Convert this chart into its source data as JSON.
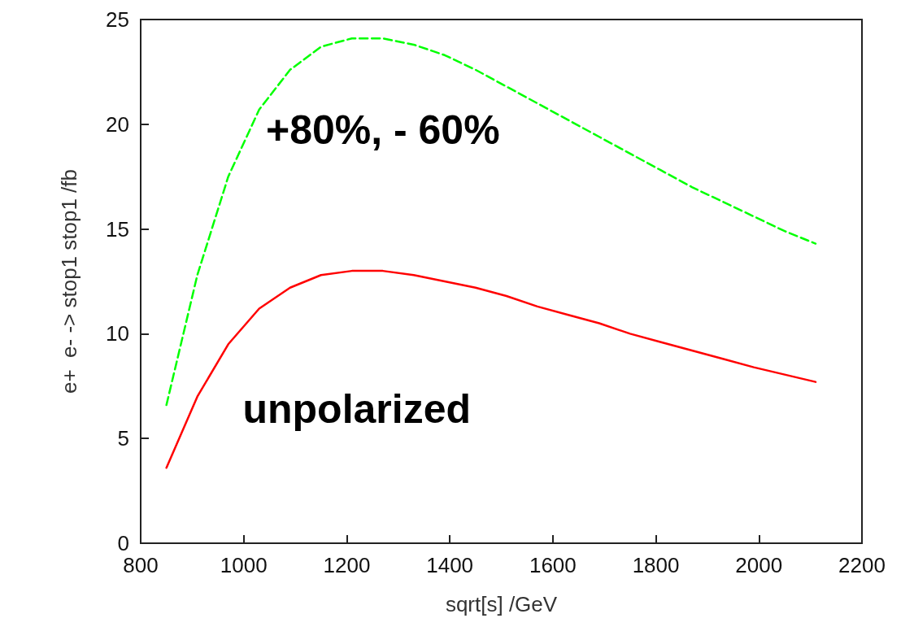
{
  "chart_data": {
    "type": "line",
    "xlabel": "sqrt[s] /GeV",
    "ylabel": "e+  e- -> stop1 stop1 /fb",
    "x": [
      850,
      910,
      970,
      1030,
      1090,
      1150,
      1210,
      1270,
      1330,
      1390,
      1450,
      1510,
      1570,
      1630,
      1690,
      1750,
      1810,
      1870,
      1930,
      1990,
      2050,
      2110
    ],
    "series": [
      {
        "name": "unpolarized",
        "color": "#ff0000",
        "line_style": "solid",
        "values": [
          3.6,
          7.0,
          9.5,
          11.2,
          12.2,
          12.8,
          13.0,
          13.0,
          12.8,
          12.5,
          12.2,
          11.8,
          11.3,
          10.9,
          10.5,
          10.0,
          9.6,
          9.2,
          8.8,
          8.4,
          8.05,
          7.7
        ]
      },
      {
        "name": "+80%, - 60%",
        "color": "#00ff00",
        "line_style": "dashed",
        "values": [
          6.6,
          12.8,
          17.5,
          20.7,
          22.6,
          23.7,
          24.1,
          24.1,
          23.8,
          23.3,
          22.6,
          21.8,
          21.0,
          20.2,
          19.4,
          18.6,
          17.8,
          17.0,
          16.3,
          15.6,
          14.9,
          14.3
        ]
      }
    ],
    "xlim": [
      800,
      2200
    ],
    "xticks": [
      800,
      1000,
      1200,
      1400,
      1600,
      1800,
      2000,
      2200
    ],
    "ylim": [
      0,
      25
    ],
    "yticks": [
      0,
      5,
      10,
      15,
      20,
      25
    ],
    "grid": false,
    "marker": "none"
  }
}
